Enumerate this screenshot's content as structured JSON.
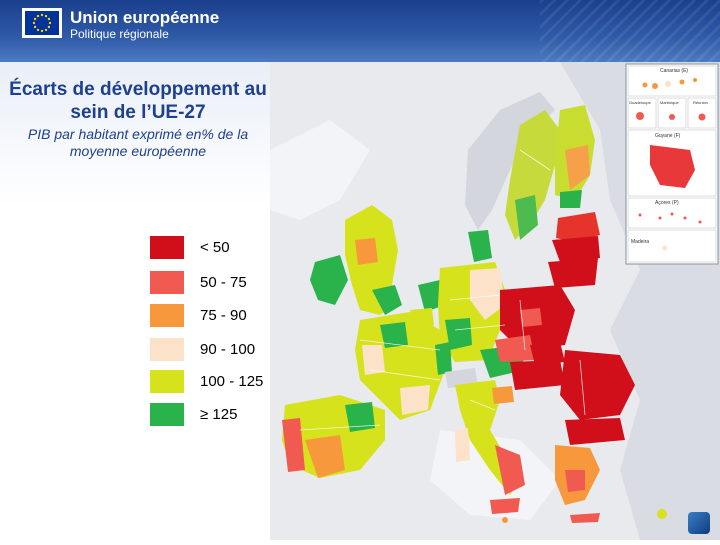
{
  "header": {
    "brand": "Union européenne",
    "department": "Politique régionale",
    "flag_color": "#003399",
    "star_color": "#ffcc00"
  },
  "title": "Écarts de développement au sein de l’UE-27",
  "subtitle": "PIB par habitant exprimé en% de la moyenne européenne",
  "legend": [
    {
      "label": "< 50",
      "color": "#d10f1a"
    },
    {
      "label": "50 - 75",
      "color": "#f05a50"
    },
    {
      "label": "75 - 90",
      "color": "#f7983c"
    },
    {
      "label": "90 - 100",
      "color": "#fbe2c8"
    },
    {
      "label": "100 - 125",
      "color": "#d6e21c"
    },
    {
      "label": "≥ 125",
      "color": "#29b34a"
    }
  ],
  "insets": {
    "canarias": "Canarias (E)",
    "guadeloupe": "Guadeloupe",
    "martinique": "Martinique",
    "reunion": "Réunion",
    "guyane": "Guyane (F)",
    "acores": "Açores (P)",
    "madeira": "Madeira"
  },
  "colors": {
    "sea": "#ffffff",
    "non_eu": "#dfe1e6",
    "border": "#ffffff"
  }
}
